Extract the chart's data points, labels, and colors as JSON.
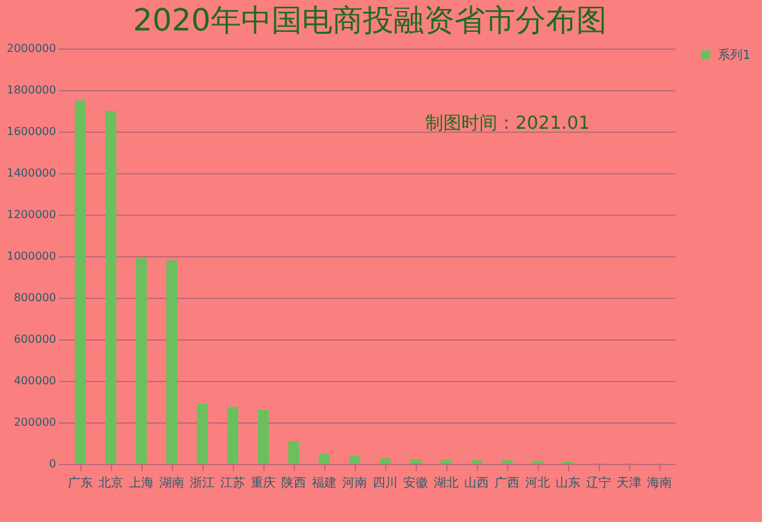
{
  "chart_data": {
    "type": "bar",
    "title": "2020年中国电商投融资省市分布图",
    "annotations": [
      "制图时间：2021.01"
    ],
    "categories": [
      "广东",
      "北京",
      "上海",
      "湖南",
      "浙江",
      "江苏",
      "重庆",
      "陕西",
      "福建",
      "河南",
      "四川",
      "安徽",
      "湖北",
      "山西",
      "广西",
      "河北",
      "山东",
      "辽宁",
      "天津",
      "海南"
    ],
    "series": [
      {
        "name": "系列1",
        "color": "#6cbf5e",
        "values": [
          1750000,
          1700000,
          990000,
          980000,
          290000,
          275000,
          260000,
          110000,
          50000,
          40000,
          27000,
          23000,
          22000,
          18000,
          18000,
          15000,
          10000,
          3000,
          3000,
          2000
        ]
      }
    ],
    "ylim": [
      0,
      2000000
    ],
    "yticks": [
      0,
      200000,
      400000,
      600000,
      800000,
      1000000,
      1200000,
      1400000,
      1600000,
      1800000,
      2000000
    ],
    "grid": "y",
    "legend": "right"
  }
}
